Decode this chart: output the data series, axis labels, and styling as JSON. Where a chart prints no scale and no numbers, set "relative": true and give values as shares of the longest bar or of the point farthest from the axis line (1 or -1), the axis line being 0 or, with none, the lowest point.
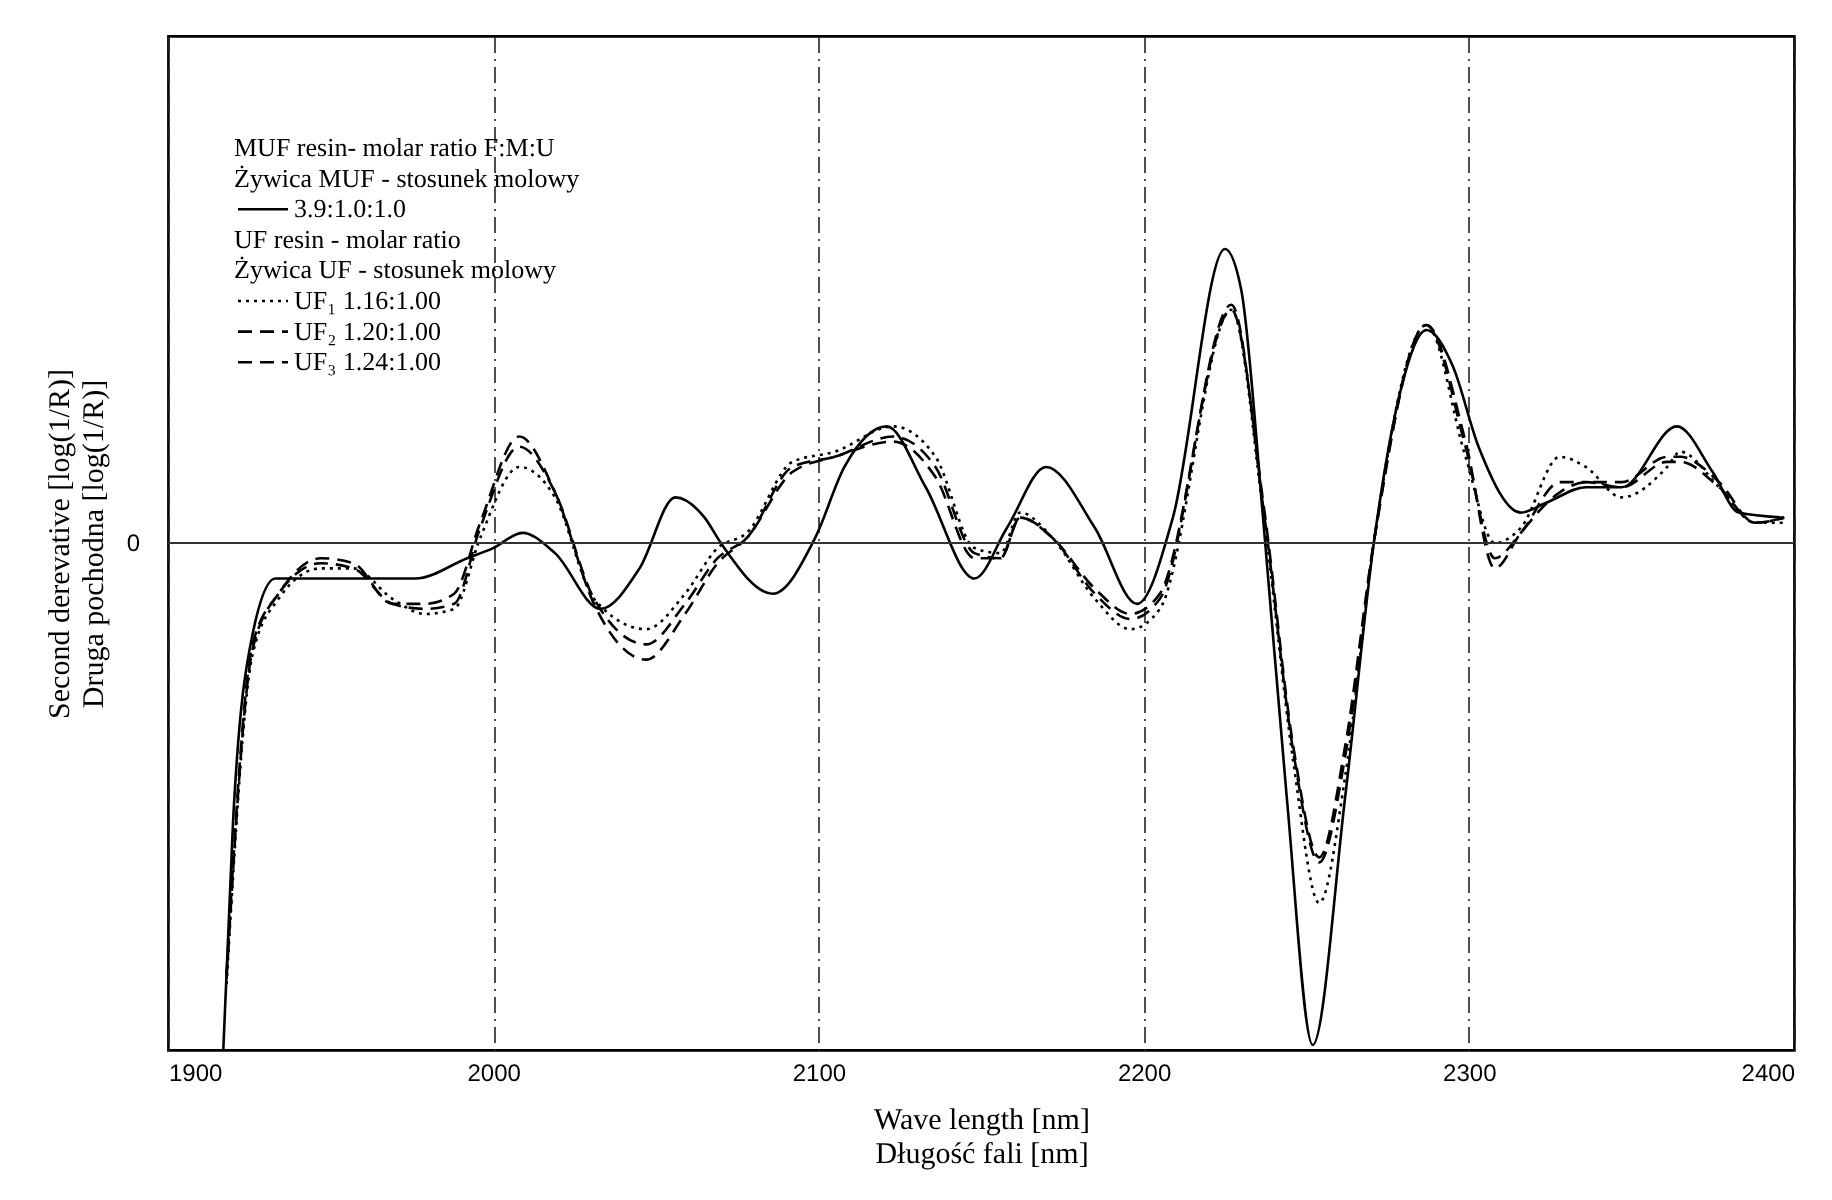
{
  "chart_data": {
    "type": "line",
    "relative": true,
    "xlabel": "Wave length [nm]\nDługość fali [nm]",
    "ylabel": "Second derevative [log(1/R)]\nDruga pochodna [log(1/R)]",
    "annotations": [
      "MUF resin- molar ratio F:M:U",
      "Żywica MUF - stosunek molowy",
      "UF resin -  molar ratio",
      "Żywica UF - stosunek molowy"
    ],
    "xlim": [
      1900,
      2400
    ],
    "xticks": [
      1900,
      2000,
      2100,
      2200,
      2300,
      2400
    ],
    "grid": "x",
    "ref_lines": [
      {
        "axis": "y",
        "value": 0,
        "label": "0"
      }
    ],
    "x": [
      1918,
      1926,
      1934,
      1947,
      1957,
      1969,
      1979,
      1988,
      1996,
      2008,
      2019,
      2031,
      2047,
      2059,
      2069,
      2078,
      2092,
      2105,
      2123,
      2136,
      2148,
      2156,
      2162,
      2172,
      2185,
      2196,
      2205,
      2227,
      2237,
      2246,
      2254,
      2262,
      2271,
      2287,
      2299,
      2308,
      2316,
      2328,
      2336,
      2347,
      2361,
      2365,
      2377,
      2388,
      2397
    ],
    "series": [
      {
        "name": "3.9:1.0:1.0",
        "color": "#000000",
        "line_style": "solid",
        "x": [
          1917,
          1920,
          1926,
          1933,
          1963,
          1967,
          1976,
          1992,
          2000,
          2009,
          2019,
          2033,
          2045,
          2056,
          2065,
          2070,
          2086,
          2099,
          2108,
          2121,
          2133,
          2148,
          2158,
          2170,
          2185,
          2198,
          2209,
          2225,
          2230,
          2237,
          2244,
          2252,
          2262,
          2271,
          2279,
          2287,
          2295,
          2303,
          2316,
          2324,
          2336,
          2347,
          2364,
          2375,
          2383,
          2397
        ],
        "values": [
          -1.0,
          -0.55,
          -0.18,
          -0.07,
          -0.07,
          -0.07,
          -0.07,
          -0.03,
          -0.01,
          0.02,
          -0.02,
          -0.13,
          -0.05,
          0.09,
          0.05,
          0,
          -0.1,
          0.01,
          0.15,
          0.23,
          0.11,
          -0.07,
          0.03,
          0.15,
          0.03,
          -0.12,
          0.05,
          0.58,
          0.5,
          0.03,
          -0.5,
          -0.99,
          -0.5,
          0.01,
          0.3,
          0.42,
          0.35,
          0.19,
          0.06,
          0.08,
          0.11,
          0.11,
          0.23,
          0.14,
          0.06,
          0.05
        ]
      },
      {
        "name": "UF₁ 1.16:1.00",
        "color": "#000000",
        "line_style": "dotted",
        "values": [
          -0.87,
          -0.22,
          -0.11,
          -0.05,
          -0.05,
          -0.11,
          -0.14,
          -0.13,
          0.01,
          0.15,
          0.09,
          -0.11,
          -0.17,
          -0.1,
          -0.01,
          0.02,
          0.16,
          0.18,
          0.23,
          0.17,
          -0.01,
          -0.02,
          0.06,
          0.01,
          -0.11,
          -0.17,
          -0.13,
          0.46,
          0.05,
          -0.43,
          -0.71,
          -0.46,
          0.01,
          0.43,
          0.17,
          0,
          0.03,
          0.17,
          0.15,
          0.09,
          0.15,
          0.18,
          0.11,
          0.04,
          0.04
        ]
      },
      {
        "name": "UF₂ 1.20:1.00",
        "color": "#000000",
        "line_style": "dashed",
        "values": [
          -0.86,
          -0.21,
          -0.1,
          -0.04,
          -0.05,
          -0.12,
          -0.13,
          -0.12,
          0.03,
          0.19,
          0.1,
          -0.11,
          -0.2,
          -0.12,
          -0.03,
          0.01,
          0.15,
          0.17,
          0.21,
          0.15,
          -0.02,
          -0.03,
          0.05,
          0.01,
          -0.1,
          -0.15,
          -0.11,
          0.47,
          0.06,
          -0.41,
          -0.63,
          -0.42,
          0.01,
          0.43,
          0.19,
          -0.03,
          0.02,
          0.12,
          0.12,
          0.11,
          0.16,
          0.16,
          0.11,
          0.04,
          0.05
        ]
      },
      {
        "name": "UF₃ 1.24:1.00",
        "color": "#000000",
        "line_style": "dashed",
        "values": [
          -0.85,
          -0.2,
          -0.1,
          -0.03,
          -0.04,
          -0.12,
          -0.12,
          -0.1,
          0.04,
          0.21,
          0.1,
          -0.12,
          -0.23,
          -0.14,
          -0.04,
          0.01,
          0.14,
          0.17,
          0.2,
          0.13,
          -0.03,
          -0.03,
          0.05,
          0.01,
          -0.09,
          -0.14,
          -0.1,
          0.46,
          0.07,
          -0.4,
          -0.62,
          -0.4,
          0.01,
          0.43,
          0.2,
          -0.05,
          0.02,
          0.1,
          0.12,
          0.12,
          0.17,
          0.17,
          0.12,
          0.04,
          0.05
        ]
      }
    ],
    "legend": "top left",
    "marker": "none"
  }
}
